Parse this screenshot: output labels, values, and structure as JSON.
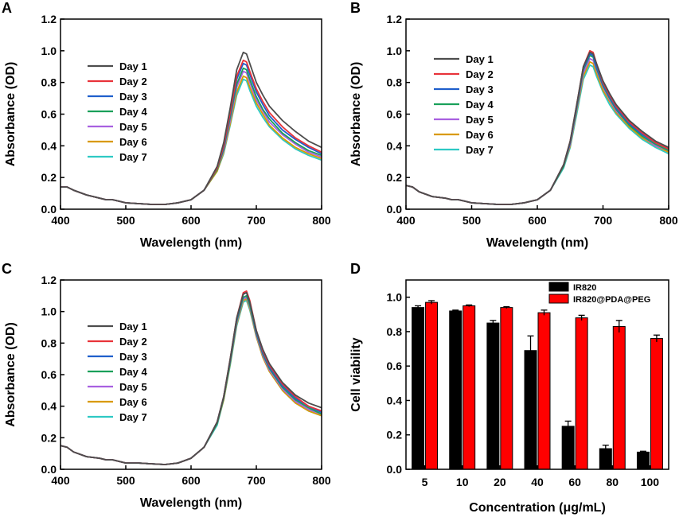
{
  "chart_data": [
    {
      "panel": "A",
      "type": "line",
      "xlabel": "Wavelength (nm)",
      "ylabel": "Absorbance (OD)",
      "xlim": [
        400,
        800
      ],
      "ylim": [
        0,
        1.2
      ],
      "xticks": [
        "400",
        "500",
        "600",
        "700",
        "800"
      ],
      "yticks": [
        "0.0",
        "0.2",
        "0.4",
        "0.6",
        "0.8",
        "1.0",
        "1.2"
      ],
      "x": [
        400,
        410,
        420,
        440,
        460,
        470,
        480,
        490,
        500,
        520,
        540,
        560,
        580,
        600,
        620,
        640,
        650,
        660,
        670,
        680,
        685,
        690,
        700,
        710,
        720,
        740,
        760,
        780,
        800
      ],
      "series": [
        {
          "name": "Day 1",
          "color": "#4d4d4d",
          "values": [
            0.14,
            0.14,
            0.12,
            0.09,
            0.07,
            0.06,
            0.06,
            0.05,
            0.04,
            0.035,
            0.03,
            0.03,
            0.04,
            0.06,
            0.12,
            0.27,
            0.42,
            0.64,
            0.88,
            0.99,
            0.98,
            0.92,
            0.8,
            0.72,
            0.65,
            0.56,
            0.49,
            0.43,
            0.39
          ]
        },
        {
          "name": "Day 2",
          "color": "#e8333a",
          "values": [
            0.14,
            0.14,
            0.12,
            0.09,
            0.07,
            0.06,
            0.06,
            0.05,
            0.04,
            0.035,
            0.03,
            0.03,
            0.04,
            0.06,
            0.12,
            0.26,
            0.4,
            0.61,
            0.84,
            0.94,
            0.93,
            0.87,
            0.76,
            0.68,
            0.61,
            0.52,
            0.45,
            0.4,
            0.36
          ]
        },
        {
          "name": "Day 3",
          "color": "#1f5fcc",
          "values": [
            0.14,
            0.14,
            0.12,
            0.09,
            0.07,
            0.06,
            0.06,
            0.05,
            0.04,
            0.035,
            0.03,
            0.03,
            0.04,
            0.06,
            0.12,
            0.26,
            0.39,
            0.6,
            0.82,
            0.92,
            0.91,
            0.85,
            0.74,
            0.66,
            0.59,
            0.5,
            0.44,
            0.39,
            0.35
          ]
        },
        {
          "name": "Day 4",
          "color": "#1aa05a",
          "values": [
            0.14,
            0.14,
            0.12,
            0.09,
            0.07,
            0.06,
            0.06,
            0.05,
            0.04,
            0.035,
            0.03,
            0.03,
            0.04,
            0.06,
            0.12,
            0.25,
            0.38,
            0.58,
            0.79,
            0.89,
            0.88,
            0.82,
            0.71,
            0.63,
            0.57,
            0.48,
            0.42,
            0.37,
            0.34
          ]
        },
        {
          "name": "Day 5",
          "color": "#a860e0",
          "values": [
            0.14,
            0.14,
            0.12,
            0.09,
            0.07,
            0.06,
            0.06,
            0.05,
            0.04,
            0.035,
            0.03,
            0.03,
            0.04,
            0.06,
            0.12,
            0.25,
            0.37,
            0.56,
            0.77,
            0.87,
            0.86,
            0.8,
            0.69,
            0.62,
            0.55,
            0.47,
            0.41,
            0.36,
            0.33
          ]
        },
        {
          "name": "Day 6",
          "color": "#d99a00",
          "values": [
            0.14,
            0.14,
            0.12,
            0.09,
            0.07,
            0.06,
            0.06,
            0.05,
            0.04,
            0.035,
            0.03,
            0.03,
            0.04,
            0.06,
            0.12,
            0.24,
            0.36,
            0.54,
            0.74,
            0.84,
            0.83,
            0.77,
            0.67,
            0.6,
            0.53,
            0.45,
            0.39,
            0.35,
            0.32
          ]
        },
        {
          "name": "Day 7",
          "color": "#2ec9c4",
          "values": [
            0.14,
            0.14,
            0.12,
            0.09,
            0.07,
            0.06,
            0.06,
            0.05,
            0.04,
            0.035,
            0.03,
            0.03,
            0.04,
            0.06,
            0.12,
            0.24,
            0.35,
            0.53,
            0.72,
            0.82,
            0.81,
            0.75,
            0.65,
            0.58,
            0.52,
            0.44,
            0.38,
            0.34,
            0.31
          ]
        }
      ]
    },
    {
      "panel": "B",
      "type": "line",
      "xlabel": "Wavelength (nm)",
      "ylabel": "Absorbance (OD)",
      "xlim": [
        400,
        800
      ],
      "ylim": [
        0,
        1.2
      ],
      "xticks": [
        "400",
        "500",
        "600",
        "700",
        "800"
      ],
      "yticks": [
        "0.0",
        "0.2",
        "0.4",
        "0.6",
        "0.8",
        "1.0",
        "1.2"
      ],
      "x": [
        400,
        410,
        420,
        440,
        460,
        470,
        480,
        490,
        500,
        520,
        540,
        560,
        580,
        600,
        620,
        640,
        650,
        660,
        670,
        680,
        685,
        690,
        700,
        710,
        720,
        740,
        760,
        780,
        800
      ],
      "series": [
        {
          "name": "Day 1",
          "color": "#4d4d4d",
          "values": [
            0.15,
            0.14,
            0.11,
            0.08,
            0.07,
            0.06,
            0.06,
            0.05,
            0.04,
            0.035,
            0.03,
            0.03,
            0.04,
            0.06,
            0.12,
            0.28,
            0.43,
            0.66,
            0.9,
            0.99,
            0.98,
            0.92,
            0.81,
            0.73,
            0.66,
            0.56,
            0.49,
            0.43,
            0.39
          ]
        },
        {
          "name": "Day 2",
          "color": "#e8333a",
          "values": [
            0.15,
            0.14,
            0.11,
            0.08,
            0.07,
            0.06,
            0.06,
            0.05,
            0.04,
            0.035,
            0.03,
            0.03,
            0.04,
            0.06,
            0.12,
            0.28,
            0.43,
            0.66,
            0.9,
            1.0,
            0.99,
            0.92,
            0.8,
            0.72,
            0.65,
            0.55,
            0.48,
            0.42,
            0.38
          ]
        },
        {
          "name": "Day 3",
          "color": "#1f5fcc",
          "values": [
            0.15,
            0.14,
            0.11,
            0.08,
            0.07,
            0.06,
            0.06,
            0.05,
            0.04,
            0.035,
            0.03,
            0.03,
            0.04,
            0.06,
            0.12,
            0.28,
            0.42,
            0.65,
            0.89,
            0.98,
            0.97,
            0.9,
            0.79,
            0.71,
            0.64,
            0.54,
            0.47,
            0.42,
            0.38
          ]
        },
        {
          "name": "Day 4",
          "color": "#1aa05a",
          "values": [
            0.15,
            0.14,
            0.11,
            0.08,
            0.07,
            0.06,
            0.06,
            0.05,
            0.04,
            0.035,
            0.03,
            0.03,
            0.04,
            0.06,
            0.12,
            0.27,
            0.42,
            0.64,
            0.88,
            0.97,
            0.96,
            0.89,
            0.78,
            0.7,
            0.63,
            0.53,
            0.46,
            0.41,
            0.37
          ]
        },
        {
          "name": "Day 5",
          "color": "#a860e0",
          "values": [
            0.15,
            0.14,
            0.11,
            0.08,
            0.07,
            0.06,
            0.06,
            0.05,
            0.04,
            0.035,
            0.03,
            0.03,
            0.04,
            0.06,
            0.12,
            0.27,
            0.41,
            0.63,
            0.86,
            0.95,
            0.94,
            0.88,
            0.77,
            0.69,
            0.62,
            0.53,
            0.46,
            0.4,
            0.37
          ]
        },
        {
          "name": "Day 6",
          "color": "#d99a00",
          "values": [
            0.15,
            0.14,
            0.11,
            0.08,
            0.07,
            0.06,
            0.06,
            0.05,
            0.04,
            0.035,
            0.03,
            0.03,
            0.04,
            0.06,
            0.12,
            0.27,
            0.4,
            0.62,
            0.84,
            0.93,
            0.92,
            0.86,
            0.75,
            0.68,
            0.61,
            0.52,
            0.45,
            0.4,
            0.36
          ]
        },
        {
          "name": "Day 7",
          "color": "#2ec9c4",
          "values": [
            0.15,
            0.14,
            0.11,
            0.08,
            0.07,
            0.06,
            0.06,
            0.05,
            0.04,
            0.035,
            0.03,
            0.03,
            0.04,
            0.06,
            0.12,
            0.26,
            0.39,
            0.6,
            0.82,
            0.91,
            0.9,
            0.84,
            0.74,
            0.66,
            0.6,
            0.51,
            0.44,
            0.39,
            0.35
          ]
        }
      ]
    },
    {
      "panel": "C",
      "type": "line",
      "xlabel": "Wavelength (nm)",
      "ylabel": "Absorbance (OD)",
      "xlim": [
        400,
        800
      ],
      "ylim": [
        0,
        1.2
      ],
      "xticks": [
        "400",
        "500",
        "600",
        "700",
        "800"
      ],
      "yticks": [
        "0.0",
        "0.2",
        "0.4",
        "0.6",
        "0.8",
        "1.0",
        "1.2"
      ],
      "x": [
        400,
        410,
        420,
        440,
        460,
        470,
        480,
        490,
        500,
        520,
        540,
        560,
        580,
        600,
        620,
        640,
        650,
        660,
        670,
        680,
        685,
        690,
        700,
        710,
        720,
        740,
        760,
        780,
        800
      ],
      "series": [
        {
          "name": "Day 1",
          "color": "#4d4d4d",
          "values": [
            0.15,
            0.14,
            0.11,
            0.08,
            0.07,
            0.06,
            0.06,
            0.05,
            0.04,
            0.04,
            0.035,
            0.03,
            0.04,
            0.07,
            0.14,
            0.3,
            0.46,
            0.7,
            0.96,
            1.11,
            1.12,
            1.06,
            0.88,
            0.76,
            0.67,
            0.55,
            0.47,
            0.42,
            0.39
          ]
        },
        {
          "name": "Day 2",
          "color": "#e8333a",
          "values": [
            0.15,
            0.14,
            0.11,
            0.08,
            0.07,
            0.06,
            0.06,
            0.05,
            0.04,
            0.04,
            0.035,
            0.03,
            0.04,
            0.07,
            0.14,
            0.3,
            0.46,
            0.7,
            0.96,
            1.12,
            1.13,
            1.07,
            0.88,
            0.75,
            0.66,
            0.54,
            0.46,
            0.4,
            0.37
          ]
        },
        {
          "name": "Day 3",
          "color": "#1f5fcc",
          "values": [
            0.15,
            0.14,
            0.11,
            0.08,
            0.07,
            0.06,
            0.06,
            0.05,
            0.04,
            0.04,
            0.035,
            0.03,
            0.04,
            0.07,
            0.14,
            0.3,
            0.46,
            0.69,
            0.95,
            1.11,
            1.12,
            1.06,
            0.87,
            0.74,
            0.65,
            0.53,
            0.45,
            0.4,
            0.36
          ]
        },
        {
          "name": "Day 4",
          "color": "#1aa05a",
          "values": [
            0.15,
            0.14,
            0.11,
            0.08,
            0.07,
            0.06,
            0.06,
            0.05,
            0.04,
            0.04,
            0.035,
            0.03,
            0.04,
            0.07,
            0.14,
            0.29,
            0.45,
            0.68,
            0.94,
            1.09,
            1.1,
            1.04,
            0.86,
            0.73,
            0.64,
            0.52,
            0.44,
            0.39,
            0.35
          ]
        },
        {
          "name": "Day 5",
          "color": "#a860e0",
          "values": [
            0.15,
            0.14,
            0.11,
            0.08,
            0.07,
            0.06,
            0.06,
            0.05,
            0.04,
            0.04,
            0.035,
            0.03,
            0.04,
            0.07,
            0.14,
            0.29,
            0.45,
            0.68,
            0.93,
            1.08,
            1.09,
            1.03,
            0.85,
            0.72,
            0.63,
            0.51,
            0.43,
            0.38,
            0.35
          ]
        },
        {
          "name": "Day 6",
          "color": "#d99a00",
          "values": [
            0.15,
            0.14,
            0.11,
            0.08,
            0.07,
            0.06,
            0.06,
            0.05,
            0.04,
            0.04,
            0.035,
            0.03,
            0.04,
            0.07,
            0.14,
            0.29,
            0.44,
            0.67,
            0.92,
            1.07,
            1.08,
            1.02,
            0.84,
            0.71,
            0.62,
            0.5,
            0.42,
            0.37,
            0.34
          ]
        },
        {
          "name": "Day 7",
          "color": "#2ec9c4",
          "values": [
            0.15,
            0.14,
            0.11,
            0.08,
            0.07,
            0.06,
            0.06,
            0.05,
            0.04,
            0.04,
            0.035,
            0.03,
            0.04,
            0.07,
            0.14,
            0.28,
            0.44,
            0.66,
            0.91,
            1.06,
            1.07,
            1.01,
            0.84,
            0.71,
            0.62,
            0.5,
            0.42,
            0.37,
            0.34
          ]
        }
      ]
    },
    {
      "panel": "D",
      "type": "bar",
      "xlabel": "Concentration (μg/mL)",
      "ylabel": "Cell viability",
      "ylim": [
        0,
        1.1
      ],
      "yticks": [
        "0.0",
        "0.2",
        "0.4",
        "0.6",
        "0.8",
        "1.0"
      ],
      "categories": [
        "5",
        "10",
        "20",
        "40",
        "60",
        "80",
        "100"
      ],
      "series": [
        {
          "name": "IR820",
          "color": "#000000",
          "values": [
            0.94,
            0.92,
            0.85,
            0.69,
            0.25,
            0.12,
            0.1
          ],
          "errors": [
            0.01,
            0.005,
            0.015,
            0.085,
            0.03,
            0.02,
            0.005
          ]
        },
        {
          "name": "IR820@PDA@PEG",
          "color": "#ff0000",
          "values": [
            0.97,
            0.95,
            0.94,
            0.91,
            0.88,
            0.83,
            0.76
          ],
          "errors": [
            0.01,
            0.005,
            0.005,
            0.015,
            0.015,
            0.035,
            0.02
          ]
        }
      ]
    }
  ]
}
